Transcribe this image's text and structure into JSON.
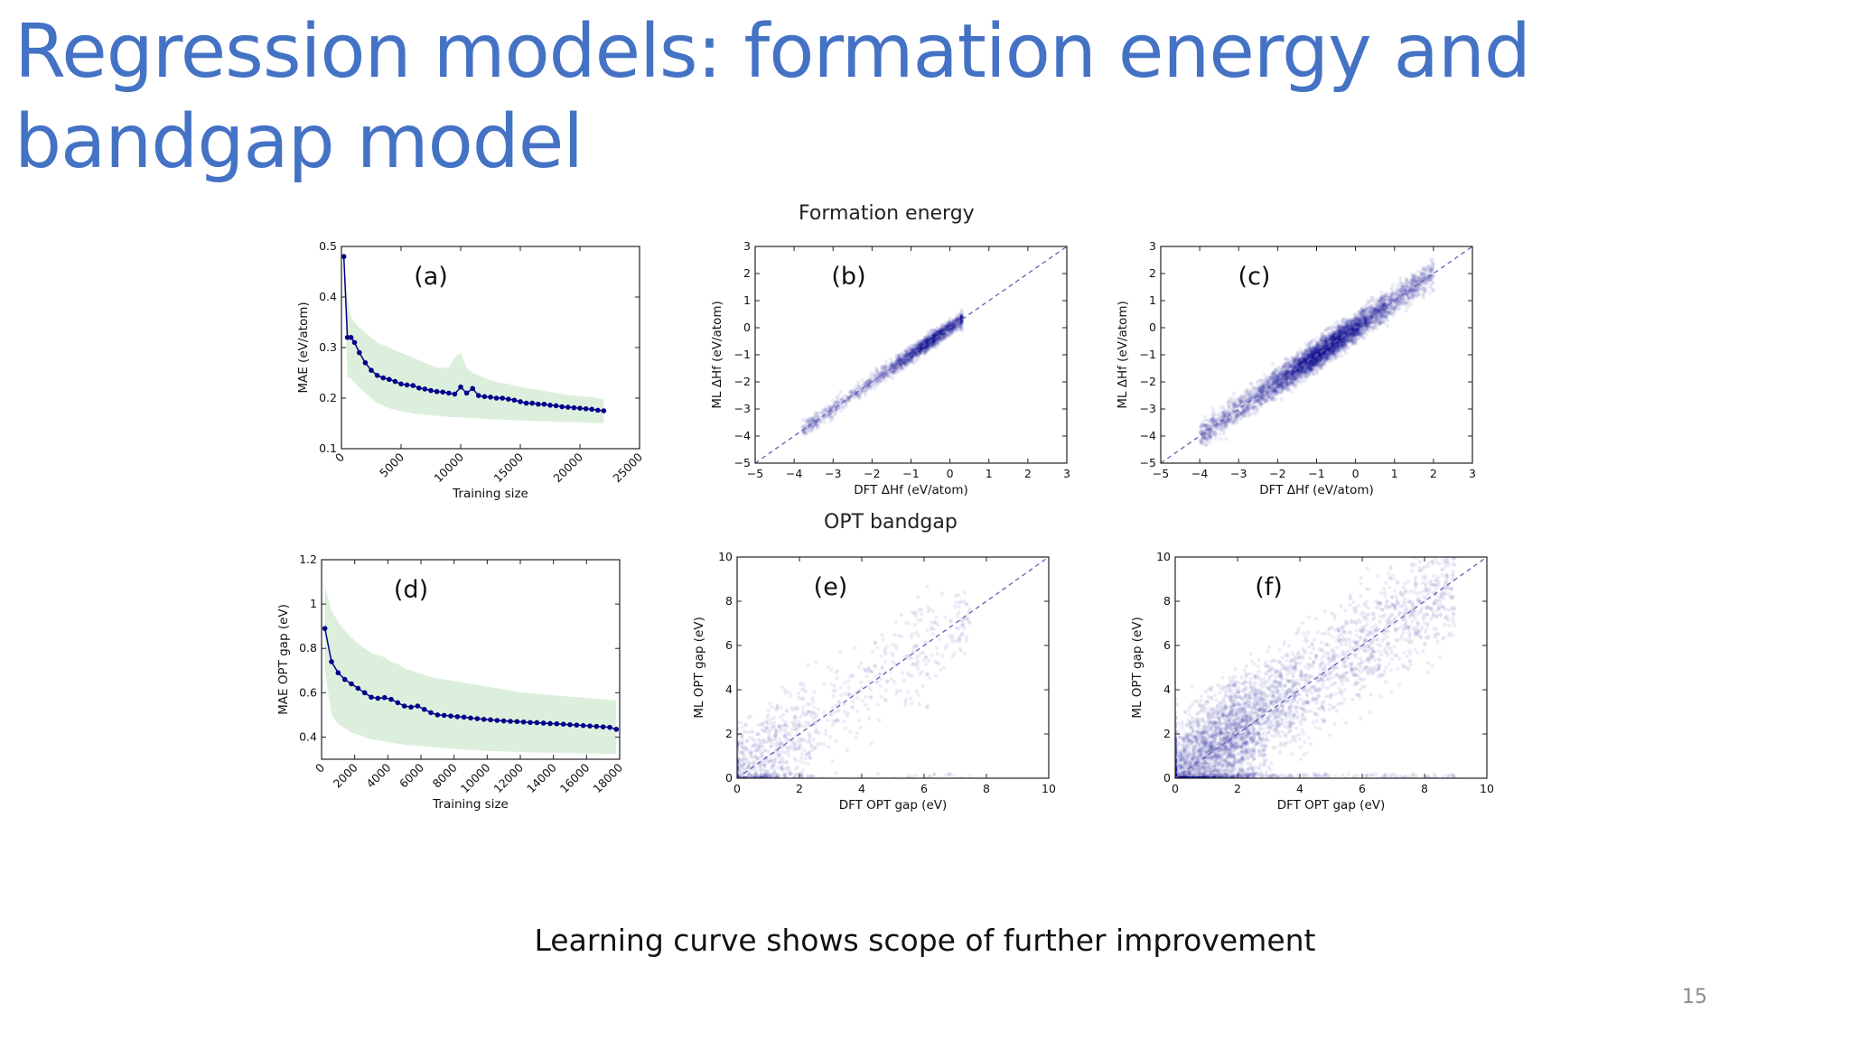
{
  "title": "Regression models: formation energy and bandgap model",
  "section_formation": "Formation energy",
  "section_bandgap": "OPT bandgap",
  "caption": "Learning curve shows scope of further improvement",
  "page_number": "15",
  "colors": {
    "title": "#4472c4",
    "series": "#00008b",
    "band": "#dcefdc",
    "diagonal": "#6b5fb5"
  },
  "chart_data": [
    {
      "id": "a",
      "type": "line",
      "panel_label": "(a)",
      "xlabel": "Training size",
      "ylabel": "MAE (eV/atom)",
      "xlim": [
        0,
        25000
      ],
      "ylim": [
        0.1,
        0.5
      ],
      "xticks": [
        0,
        5000,
        10000,
        15000,
        20000,
        25000
      ],
      "yticks": [
        0.1,
        0.2,
        0.3,
        0.4,
        0.5
      ],
      "tick_labels_rotated": true,
      "series": [
        {
          "x": [
            200,
            500,
            800,
            1100,
            1500,
            2000,
            2500,
            3000,
            3500,
            4000,
            4500,
            5000,
            5500,
            6000,
            6500,
            7000,
            7500,
            8000,
            8500,
            9000,
            9500,
            10000,
            10500,
            11000,
            11500,
            12000,
            12500,
            13000,
            13500,
            14000,
            14500,
            15000,
            15500,
            16000,
            16500,
            17000,
            17500,
            18000,
            18500,
            19000,
            19500,
            20000,
            20500,
            21000,
            21500,
            22000
          ],
          "y": [
            0.48,
            0.32,
            0.32,
            0.31,
            0.29,
            0.27,
            0.255,
            0.245,
            0.24,
            0.237,
            0.233,
            0.228,
            0.226,
            0.225,
            0.22,
            0.218,
            0.215,
            0.213,
            0.212,
            0.21,
            0.208,
            0.222,
            0.21,
            0.219,
            0.205,
            0.203,
            0.202,
            0.2,
            0.2,
            0.198,
            0.196,
            0.193,
            0.19,
            0.19,
            0.188,
            0.188,
            0.186,
            0.185,
            0.183,
            0.182,
            0.181,
            0.18,
            0.179,
            0.178,
            0.176,
            0.175
          ],
          "band_upper": [
            0.48,
            0.4,
            0.36,
            0.35,
            0.34,
            0.33,
            0.32,
            0.31,
            0.305,
            0.3,
            0.295,
            0.29,
            0.285,
            0.28,
            0.275,
            0.27,
            0.265,
            0.26,
            0.26,
            0.26,
            0.28,
            0.29,
            0.26,
            0.25,
            0.245,
            0.24,
            0.235,
            0.232,
            0.23,
            0.228,
            0.225,
            0.222,
            0.22,
            0.218,
            0.216,
            0.214,
            0.212,
            0.21,
            0.208,
            0.206,
            0.205,
            0.204,
            0.203,
            0.202,
            0.2,
            0.198
          ],
          "band_lower": [
            0.48,
            0.24,
            0.24,
            0.23,
            0.22,
            0.21,
            0.2,
            0.19,
            0.185,
            0.18,
            0.177,
            0.174,
            0.172,
            0.17,
            0.168,
            0.167,
            0.166,
            0.165,
            0.164,
            0.163,
            0.162,
            0.162,
            0.161,
            0.16,
            0.16,
            0.159,
            0.158,
            0.158,
            0.157,
            0.157,
            0.156,
            0.156,
            0.155,
            0.155,
            0.154,
            0.154,
            0.154,
            0.153,
            0.153,
            0.153,
            0.152,
            0.152,
            0.152,
            0.151,
            0.151,
            0.151
          ]
        }
      ]
    },
    {
      "id": "b",
      "type": "scatter",
      "panel_label": "(b)",
      "xlabel": "DFT ΔHf (eV/atom)",
      "ylabel": "ML ΔHf (eV/atom)",
      "xlim": [
        -5,
        3
      ],
      "ylim": [
        -5,
        3
      ],
      "xticks": [
        -5,
        -4,
        -3,
        -2,
        -1,
        0,
        1,
        2,
        3
      ],
      "yticks": [
        -5,
        -4,
        -3,
        -2,
        -1,
        0,
        1,
        2,
        3
      ],
      "diagonal": true,
      "density": {
        "x_range": [
          -3.8,
          0.3
        ],
        "x_peak": -0.5,
        "spread": 0.12,
        "n": 1700,
        "seed": 11
      }
    },
    {
      "id": "c",
      "type": "scatter",
      "panel_label": "(c)",
      "xlabel": "DFT ΔHf (eV/atom)",
      "ylabel": "ML ΔHf (eV/atom)",
      "xlim": [
        -5,
        3
      ],
      "ylim": [
        -5,
        3
      ],
      "xticks": [
        -5,
        -4,
        -3,
        -2,
        -1,
        0,
        1,
        2,
        3
      ],
      "yticks": [
        -5,
        -4,
        -3,
        -2,
        -1,
        0,
        1,
        2,
        3
      ],
      "diagonal": true,
      "density": {
        "x_range": [
          -4.0,
          2.0
        ],
        "x_peak": -0.8,
        "spread": 0.22,
        "n": 4500,
        "seed": 23
      }
    },
    {
      "id": "d",
      "type": "line",
      "panel_label": "(d)",
      "xlabel": "Training size",
      "ylabel": "MAE OPT gap (eV)",
      "xlim": [
        0,
        18000
      ],
      "ylim": [
        0.3,
        1.2
      ],
      "xticks": [
        0,
        2000,
        4000,
        6000,
        8000,
        10000,
        12000,
        14000,
        16000,
        18000
      ],
      "yticks": [
        0.4,
        0.6,
        0.8,
        1.0,
        1.2
      ],
      "tick_labels_rotated": true,
      "series": [
        {
          "x": [
            200,
            600,
            1000,
            1400,
            1800,
            2200,
            2600,
            3000,
            3400,
            3800,
            4200,
            4600,
            5000,
            5400,
            5800,
            6200,
            6600,
            7000,
            7400,
            7800,
            8200,
            8600,
            9000,
            9400,
            9800,
            10200,
            10600,
            11000,
            11400,
            11800,
            12200,
            12600,
            13000,
            13400,
            13800,
            14200,
            14600,
            15000,
            15400,
            15800,
            16200,
            16600,
            17000,
            17400,
            17800
          ],
          "y": [
            0.89,
            0.74,
            0.69,
            0.66,
            0.64,
            0.62,
            0.6,
            0.58,
            0.575,
            0.578,
            0.57,
            0.555,
            0.54,
            0.535,
            0.54,
            0.525,
            0.51,
            0.5,
            0.498,
            0.495,
            0.492,
            0.49,
            0.486,
            0.483,
            0.48,
            0.478,
            0.475,
            0.473,
            0.471,
            0.47,
            0.468,
            0.466,
            0.465,
            0.463,
            0.461,
            0.46,
            0.458,
            0.456,
            0.454,
            0.452,
            0.45,
            0.448,
            0.446,
            0.444,
            0.435
          ],
          "band_upper": [
            1.08,
            0.97,
            0.92,
            0.88,
            0.85,
            0.82,
            0.8,
            0.78,
            0.77,
            0.76,
            0.74,
            0.73,
            0.71,
            0.7,
            0.69,
            0.68,
            0.67,
            0.665,
            0.66,
            0.655,
            0.65,
            0.645,
            0.64,
            0.635,
            0.63,
            0.625,
            0.62,
            0.615,
            0.61,
            0.605,
            0.6,
            0.598,
            0.595,
            0.592,
            0.59,
            0.587,
            0.585,
            0.582,
            0.58,
            0.578,
            0.575,
            0.572,
            0.57,
            0.568,
            0.565
          ],
          "band_lower": [
            0.7,
            0.5,
            0.46,
            0.44,
            0.42,
            0.41,
            0.4,
            0.39,
            0.385,
            0.38,
            0.375,
            0.37,
            0.365,
            0.362,
            0.36,
            0.358,
            0.355,
            0.352,
            0.35,
            0.348,
            0.346,
            0.344,
            0.342,
            0.34,
            0.338,
            0.337,
            0.336,
            0.335,
            0.334,
            0.333,
            0.332,
            0.331,
            0.33,
            0.33,
            0.329,
            0.329,
            0.328,
            0.328,
            0.327,
            0.327,
            0.326,
            0.326,
            0.325,
            0.325,
            0.325
          ]
        }
      ]
    },
    {
      "id": "e",
      "type": "scatter",
      "panel_label": "(e)",
      "xlabel": "DFT OPT gap (eV)",
      "ylabel": "ML OPT gap (eV)",
      "xlim": [
        0,
        10
      ],
      "ylim": [
        0,
        10
      ],
      "xticks": [
        0,
        2,
        4,
        6,
        8,
        10
      ],
      "yticks": [
        0,
        2,
        4,
        6,
        8,
        10
      ],
      "diagonal": true,
      "density": {
        "x_range": [
          0,
          7.5
        ],
        "x_peak": 0.6,
        "spread": 0.75,
        "n": 1100,
        "seed": 37
      }
    },
    {
      "id": "f",
      "type": "scatter",
      "panel_label": "(f)",
      "xlabel": "DFT OPT gap (eV)",
      "ylabel": "ML OPT gap (eV)",
      "xlim": [
        0,
        10
      ],
      "ylim": [
        0,
        10
      ],
      "xticks": [
        0,
        2,
        4,
        6,
        8,
        10
      ],
      "yticks": [
        0,
        2,
        4,
        6,
        8,
        10
      ],
      "diagonal": true,
      "density": {
        "x_range": [
          0,
          9.0
        ],
        "x_peak": 1.2,
        "spread": 0.85,
        "n": 4200,
        "seed": 53
      }
    }
  ]
}
